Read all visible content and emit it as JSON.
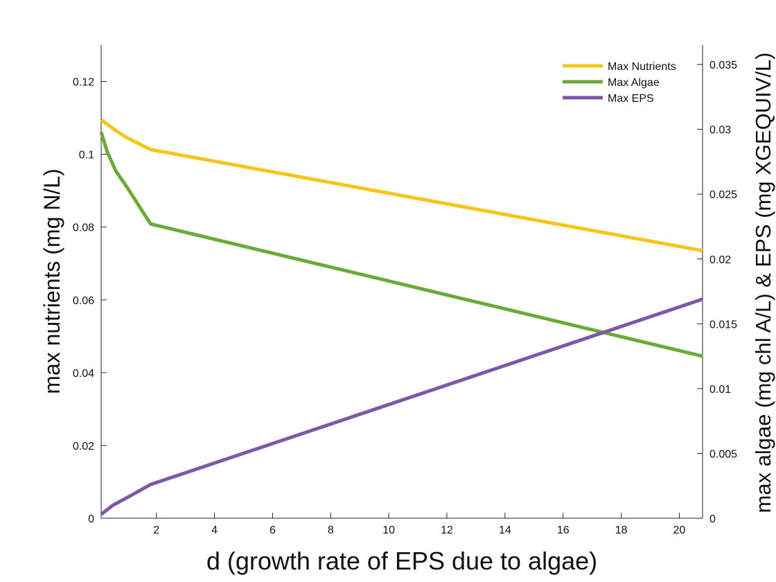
{
  "chart_data": {
    "type": "line",
    "xlabel": "d (growth rate of EPS due to algae)",
    "ylabel_left": "max nutrients (mg N/L)",
    "ylabel_right": "max algae (mg chl A/L) & EPS (mg XGEQUIV/L)",
    "xlim": [
      0.1,
      20.8
    ],
    "ylim_left": [
      0,
      0.13
    ],
    "ylim_right": [
      0,
      0.0365
    ],
    "x_ticks": [
      2,
      4,
      6,
      8,
      10,
      12,
      14,
      16,
      18,
      20
    ],
    "y_ticks_left": [
      0,
      0.02,
      0.04,
      0.06,
      0.08,
      0.1,
      0.12
    ],
    "y_ticks_right": [
      0,
      0.005,
      0.01,
      0.015,
      0.02,
      0.025,
      0.03,
      0.035
    ],
    "legend_position": "top-right",
    "grid": false,
    "series": [
      {
        "name": "Max Nutrients",
        "axis": "left",
        "color": "#f5c518",
        "x": [
          0.1,
          0.6,
          1.0,
          1.8,
          20.8
        ],
        "y": [
          0.1095,
          0.1065,
          0.1045,
          0.1013,
          0.0735
        ]
      },
      {
        "name": "Max Algae",
        "axis": "right",
        "color": "#6aaa3a",
        "x": [
          0.1,
          0.3,
          0.6,
          1.0,
          1.8,
          20.8
        ],
        "y": [
          0.0298,
          0.0283,
          0.0268,
          0.0255,
          0.0227,
          0.0125
        ]
      },
      {
        "name": "Max EPS",
        "axis": "right",
        "color": "#7e57a8",
        "x": [
          0.1,
          0.5,
          1.0,
          1.8,
          20.8
        ],
        "y": [
          0.0003,
          0.001,
          0.0016,
          0.0026,
          0.0169
        ]
      }
    ]
  }
}
